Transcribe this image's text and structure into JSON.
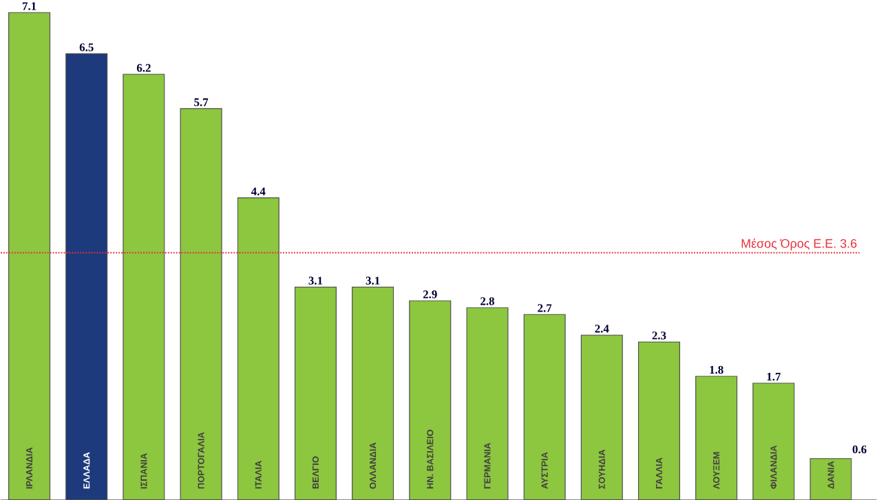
{
  "chart_data": {
    "type": "bar",
    "categories": [
      "ΙΡΛΑΝΔΙΑ",
      "ΕΛΛΑΔΑ",
      "ΙΣΠΑΝΙΑ",
      "ΠΟΡΤΟΓΑΛΙΑ",
      "ΙΤΑΛΙΑ",
      "ΒΕΛΓΙΟ",
      "ΟΛΛΑΝΔΙΑ",
      "ΗΝ. ΒΑΣΙΛΕΙΟ",
      "ΓΕΡΜΑΝΙΑ",
      "ΑΥΣΤΡΙΑ",
      "ΣΟΥΗΔΙΑ",
      "ΓΑΛΛΙΑ",
      "ΛΟΥΞΕΜ",
      "ΦΙΛΑΝΔΙΑ",
      "ΔΑΝΙΑ"
    ],
    "values": [
      7.1,
      6.5,
      6.2,
      5.7,
      4.4,
      3.1,
      3.1,
      2.9,
      2.8,
      2.7,
      2.4,
      2.3,
      1.8,
      1.7,
      0.6
    ],
    "colors": [
      "#8dc63f",
      "#1c3a7c",
      "#8dc63f",
      "#8dc63f",
      "#8dc63f",
      "#8dc63f",
      "#8dc63f",
      "#8dc63f",
      "#8dc63f",
      "#8dc63f",
      "#8dc63f",
      "#8dc63f",
      "#8dc63f",
      "#8dc63f",
      "#8dc63f"
    ],
    "data_labels": true,
    "ref_lines": [
      {
        "axis": "y",
        "value": 3.6,
        "label": "Μέσος Όρος Ε.Ε. 3.6",
        "color": "#e8303a",
        "line_style": "dotted"
      }
    ]
  }
}
